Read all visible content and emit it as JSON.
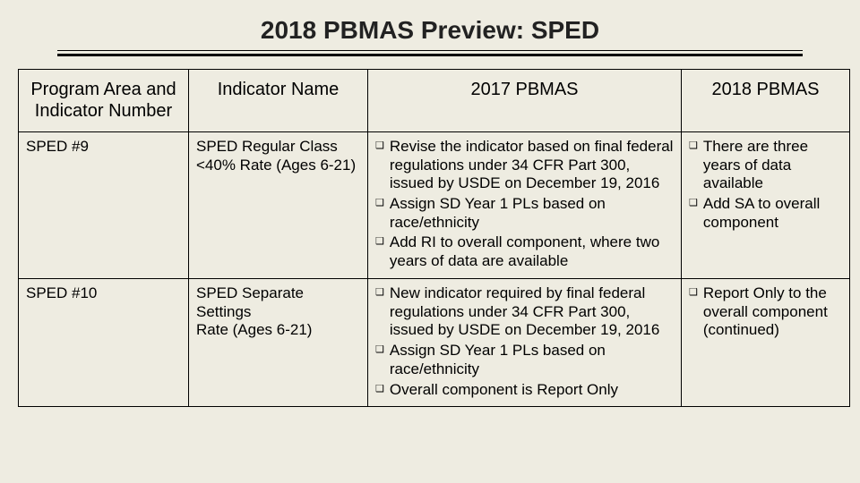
{
  "colors": {
    "background": "#eeece1",
    "text": "#000000",
    "border": "#000000"
  },
  "title": "2018 PBMAS Preview: SPED",
  "columns": [
    "Program Area and Indicator Number",
    "Indicator Name",
    "2017 PBMAS",
    "2018 PBMAS"
  ],
  "rows": [
    {
      "program": "SPED #9",
      "indicator": "SPED Regular Class <40% Rate (Ages 6-21)",
      "y2017": [
        "Revise the indicator based on final federal regulations under 34 CFR Part 300, issued by USDE on December 19, 2016",
        "Assign SD Year 1 PLs based on race/ethnicity",
        "Add RI to overall component, where two years of data are available"
      ],
      "y2018": [
        "There are three years of data available",
        "Add SA to overall component"
      ]
    },
    {
      "program": "SPED #10",
      "indicator": "SPED Separate Settings\n Rate (Ages 6-21)",
      "y2017": [
        "New indicator required by final federal regulations under 34 CFR Part 300, issued by USDE on December 19, 2016",
        "Assign SD Year 1 PLs based on race/ethnicity",
        "Overall component is Report Only"
      ],
      "y2018": [
        "Report Only to the overall component (continued)"
      ]
    }
  ],
  "bullet_glyph": "❑"
}
